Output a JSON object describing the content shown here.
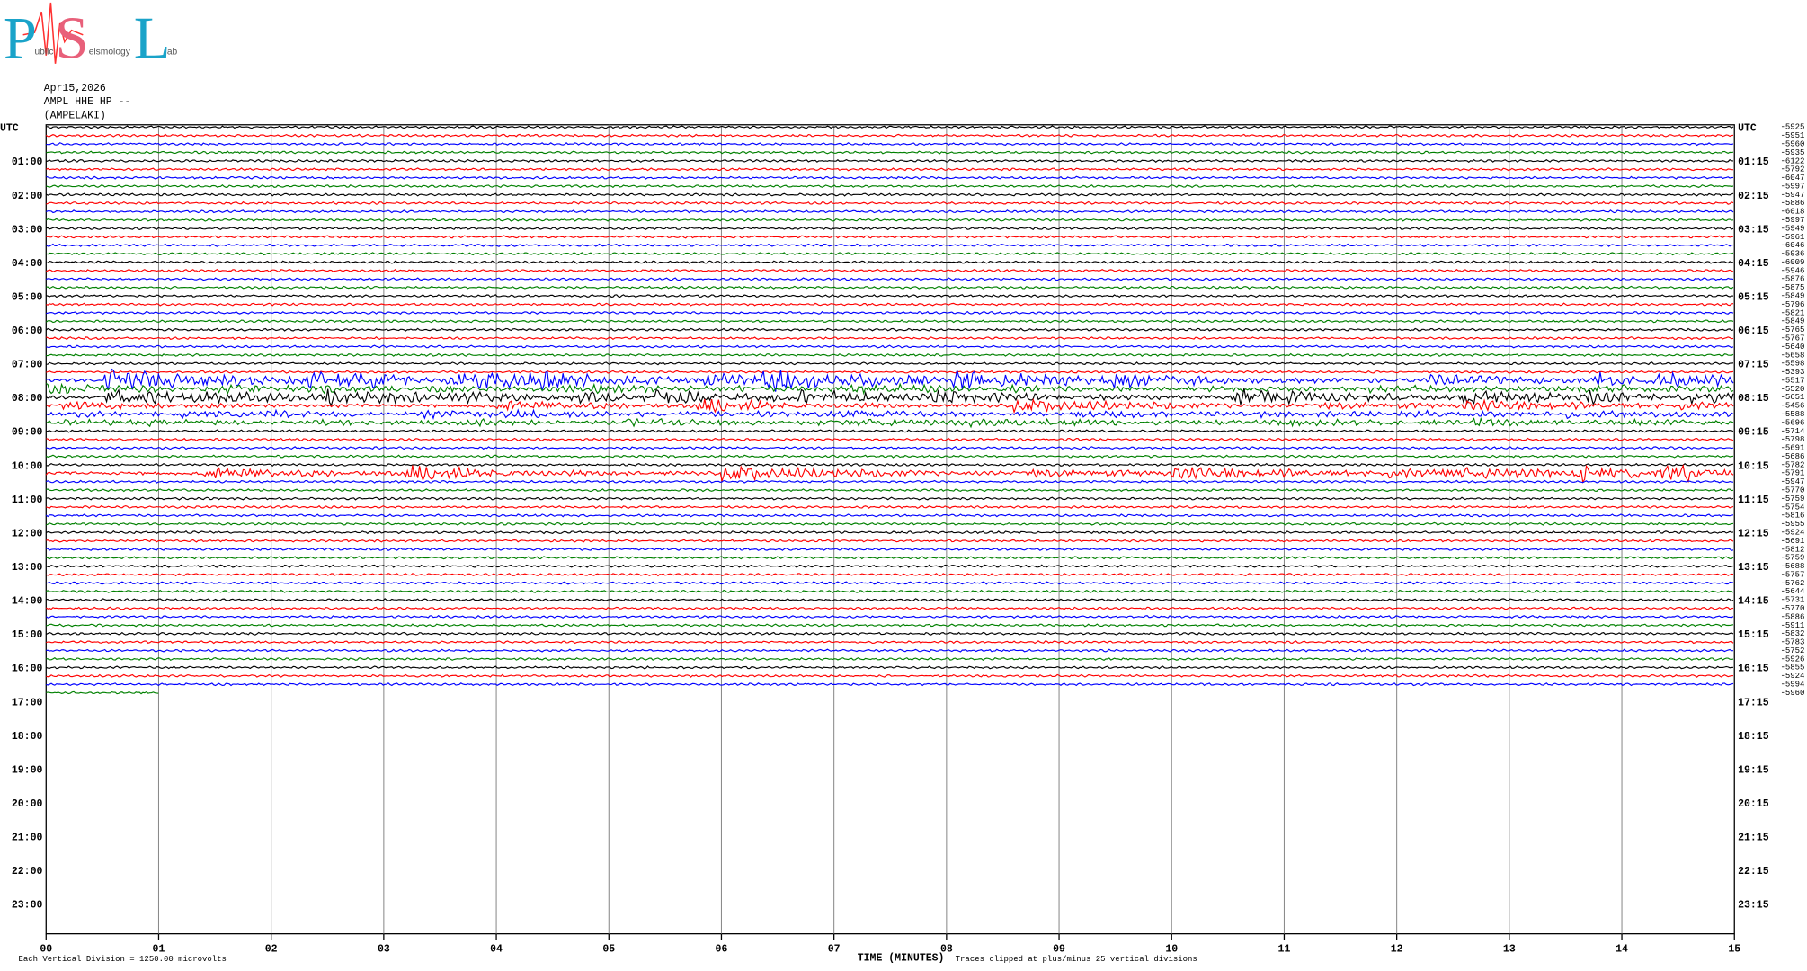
{
  "logo": {
    "letters": [
      "P",
      "S",
      "L"
    ],
    "words": [
      "ublic",
      "eismology",
      "ab"
    ]
  },
  "header": {
    "date": "Apr15,2026",
    "station": "AMPL HHE HP --",
    "site": "(AMPELAKI)"
  },
  "left_labels": [
    "UTC",
    "01:00",
    "02:00",
    "03:00",
    "04:00",
    "05:00",
    "06:00",
    "07:00",
    "08:00",
    "09:00",
    "10:00",
    "11:00",
    "12:00",
    "13:00",
    "14:00",
    "15:00",
    "16:00",
    "17:00",
    "18:00",
    "19:00",
    "20:00",
    "21:00",
    "22:00",
    "23:00"
  ],
  "right_labels": [
    "UTC",
    "01:15",
    "02:15",
    "03:15",
    "04:15",
    "05:15",
    "06:15",
    "07:15",
    "08:15",
    "09:15",
    "10:15",
    "11:15",
    "12:15",
    "13:15",
    "14:15",
    "15:15",
    "16:15",
    "17:15",
    "18:15",
    "19:15",
    "20:15",
    "21:15",
    "22:15",
    "23:15"
  ],
  "trace_colors": [
    "#000000",
    "#ff0000",
    "#0000ff",
    "#008000"
  ],
  "trace_levels": [
    "-5925",
    "-5951",
    "-5960",
    "-5935",
    "-6122",
    "-5792",
    "-6047",
    "-5997",
    "-5947",
    "-5886",
    "-6018",
    "-5997",
    "-5949",
    "-5961",
    "-6046",
    "-5936",
    "-6009",
    "-5946",
    "-5876",
    "-5875",
    "-5849",
    "-5796",
    "-5821",
    "-5849",
    "-5765",
    "-5767",
    "-5640",
    "-5658",
    "-5598",
    "-5393",
    "-5517",
    "-5520",
    "-5651",
    "-5456",
    "-5588",
    "-5696",
    "-5714",
    "-5798",
    "-5691",
    "-5686",
    "-5782",
    "-5791",
    "-5947",
    "-5770",
    "-5759",
    "-5754",
    "-5816",
    "-5955",
    "-5924",
    "-5691",
    "-5812",
    "-5759",
    "-5688",
    "-5757",
    "-5762",
    "-5644",
    "-5731",
    "-5770",
    "-5886",
    "-5911",
    "-5832",
    "-5783",
    "-5752",
    "-5926",
    "-5855",
    "-5924",
    "-5994",
    "-5960"
  ],
  "x_ticks": [
    "00",
    "01",
    "02",
    "03",
    "04",
    "05",
    "06",
    "07",
    "08",
    "09",
    "10",
    "11",
    "12",
    "13",
    "14",
    "15"
  ],
  "footer": {
    "scale": "Each Vertical Division = 1250.00 microvolts",
    "x_title": "TIME (MINUTES)",
    "clip_note": "Traces clipped at plus/minus 25 vertical divisions"
  }
}
